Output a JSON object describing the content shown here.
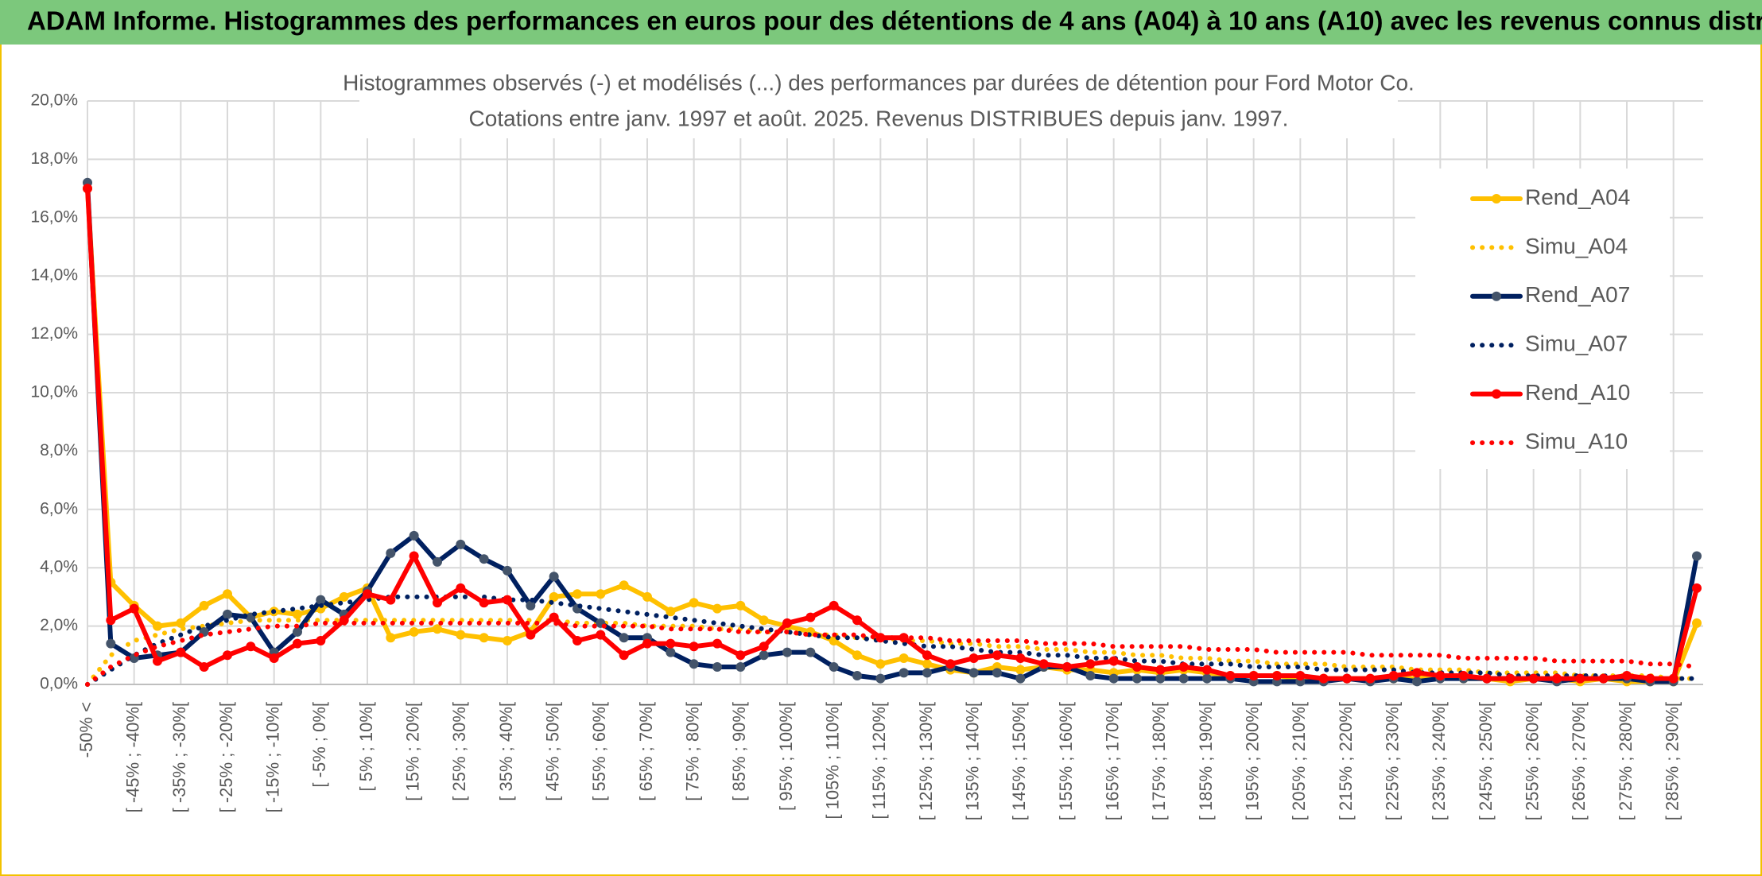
{
  "header": {
    "title": "ADAM Informe. Histogrammes des performances en euros pour des détentions de 4 ans (A04) à 10 ans (A10) avec les revenus connus distribués"
  },
  "chart_data": {
    "type": "line",
    "title": "Histogrammes observés (-) et modélisés (...) des performances par durées de détention pour Ford Motor Co.",
    "subtitle": "Cotations entre janv. 1997 et août. 2025. Revenus DISTRIBUES depuis janv. 1997.",
    "categories": [
      "-50% <",
      null,
      "[ -45% ; -40%[",
      null,
      "[ -35% ; -30%[",
      null,
      "[ -25% ; -20%[",
      null,
      "[ -15% ; -10%[",
      null,
      "[ -5% ; 0%[",
      null,
      "[ 5% ; 10%[",
      null,
      "[ 15% ; 20%[",
      null,
      "[ 25% ; 30%[",
      null,
      "[ 35% ; 40%[",
      null,
      "[ 45% ; 50%[",
      null,
      "[ 55% ; 60%[",
      null,
      "[ 65% ; 70%[",
      null,
      "[ 75% ; 80%[",
      null,
      "[ 85% ; 90%[",
      null,
      "[ 95% ; 100%[",
      null,
      "[ 105% ; 110%[",
      null,
      "[ 115% ; 120%[",
      null,
      "[ 125% ; 130%[",
      null,
      "[ 135% ; 140%[",
      null,
      "[ 145% ; 150%[",
      null,
      "[ 155% ; 160%[",
      null,
      "[ 165% ; 170%[",
      null,
      "[ 175% ; 180%[",
      null,
      "[ 185% ; 190%[",
      null,
      "[ 195% ; 200%[",
      null,
      "[ 205% ; 210%[",
      null,
      "[ 215% ; 220%[",
      null,
      "[ 225% ; 230%[",
      null,
      "[ 235% ; 240%[",
      null,
      "[ 245% ; 250%[",
      null,
      "[ 255% ; 260%[",
      null,
      "[ 265% ; 270%[",
      null,
      "[ 275% ; 280%[",
      null,
      "[ 285% ; 290%[",
      null
    ],
    "ylim": [
      0,
      20
    ],
    "yticks": [
      {
        "value": 0,
        "label": "0,0%"
      },
      {
        "value": 2,
        "label": "2,0%"
      },
      {
        "value": 4,
        "label": "4,0%"
      },
      {
        "value": 6,
        "label": "6,0%"
      },
      {
        "value": 8,
        "label": "8,0%"
      },
      {
        "value": 10,
        "label": "10,0%"
      },
      {
        "value": 12,
        "label": "12,0%"
      },
      {
        "value": 14,
        "label": "14,0%"
      },
      {
        "value": 16,
        "label": "16,0%"
      },
      {
        "value": 18,
        "label": "18,0%"
      },
      {
        "value": 20,
        "label": "20,0%"
      }
    ],
    "grid": true,
    "legend": "right",
    "series": [
      {
        "name": "Rend_A04",
        "color": "#ffc000",
        "style": "solid",
        "values": [
          17.0,
          3.5,
          2.7,
          2.0,
          2.1,
          2.7,
          3.1,
          2.3,
          2.5,
          2.4,
          2.6,
          3.0,
          3.3,
          1.6,
          1.8,
          1.9,
          1.7,
          1.6,
          1.5,
          1.8,
          3.0,
          3.1,
          3.1,
          3.4,
          3.0,
          2.5,
          2.8,
          2.6,
          2.7,
          2.2,
          2.0,
          1.8,
          1.5,
          1.0,
          0.7,
          0.9,
          0.7,
          0.5,
          0.4,
          0.6,
          0.5,
          0.6,
          0.5,
          0.5,
          0.4,
          0.5,
          0.4,
          0.5,
          0.4,
          0.3,
          0.3,
          0.3,
          0.2,
          0.2,
          0.2,
          0.2,
          0.2,
          0.2,
          0.3,
          0.2,
          0.2,
          0.1,
          0.2,
          0.2,
          0.1,
          0.2,
          0.1,
          0.1,
          0.1,
          2.1
        ]
      },
      {
        "name": "Simu_A04",
        "color": "#ffc000",
        "style": "dotted",
        "values": [
          0,
          1.0,
          1.5,
          1.7,
          1.9,
          2.0,
          2.1,
          2.2,
          2.2,
          2.2,
          2.2,
          2.2,
          2.2,
          2.2,
          2.2,
          2.2,
          2.2,
          2.2,
          2.2,
          2.2,
          2.2,
          2.1,
          2.1,
          2.1,
          2.0,
          2.0,
          2.0,
          1.9,
          1.9,
          1.8,
          1.8,
          1.7,
          1.7,
          1.6,
          1.6,
          1.5,
          1.5,
          1.4,
          1.4,
          1.3,
          1.3,
          1.2,
          1.2,
          1.1,
          1.1,
          1.0,
          1.0,
          0.9,
          0.9,
          0.8,
          0.8,
          0.7,
          0.7,
          0.7,
          0.6,
          0.6,
          0.6,
          0.5,
          0.5,
          0.5,
          0.4,
          0.4,
          0.4,
          0.4,
          0.3,
          0.3,
          0.3,
          0.3,
          0.2,
          0.2
        ]
      },
      {
        "name": "Rend_A07",
        "color": "#002060",
        "style": "solid",
        "values": [
          17.2,
          1.4,
          0.9,
          1.0,
          1.1,
          1.8,
          2.4,
          2.3,
          1.1,
          1.8,
          2.9,
          2.4,
          3.2,
          4.5,
          5.1,
          4.2,
          4.8,
          4.3,
          3.9,
          2.7,
          3.7,
          2.6,
          2.1,
          1.6,
          1.6,
          1.1,
          0.7,
          0.6,
          0.6,
          1.0,
          1.1,
          1.1,
          0.6,
          0.3,
          0.2,
          0.4,
          0.4,
          0.6,
          0.4,
          0.4,
          0.2,
          0.6,
          0.6,
          0.3,
          0.2,
          0.2,
          0.2,
          0.2,
          0.2,
          0.2,
          0.1,
          0.1,
          0.1,
          0.1,
          0.2,
          0.1,
          0.2,
          0.1,
          0.2,
          0.2,
          0.2,
          0.2,
          0.2,
          0.1,
          0.2,
          0.2,
          0.2,
          0.1,
          0.1,
          4.4
        ]
      },
      {
        "name": "Simu_A07",
        "color": "#002060",
        "style": "dotted",
        "values": [
          0,
          0.5,
          1.0,
          1.4,
          1.7,
          2.0,
          2.2,
          2.4,
          2.5,
          2.6,
          2.7,
          2.8,
          2.9,
          3.0,
          3.0,
          3.0,
          3.0,
          3.0,
          2.9,
          2.9,
          2.8,
          2.7,
          2.6,
          2.5,
          2.4,
          2.3,
          2.2,
          2.1,
          2.0,
          1.9,
          1.8,
          1.7,
          1.6,
          1.6,
          1.5,
          1.4,
          1.3,
          1.3,
          1.2,
          1.1,
          1.1,
          1.0,
          1.0,
          0.9,
          0.9,
          0.8,
          0.8,
          0.7,
          0.7,
          0.7,
          0.6,
          0.6,
          0.6,
          0.5,
          0.5,
          0.5,
          0.5,
          0.4,
          0.4,
          0.4,
          0.4,
          0.3,
          0.3,
          0.3,
          0.3,
          0.3,
          0.2,
          0.2,
          0.2,
          0.2
        ]
      },
      {
        "name": "Rend_A10",
        "color": "#ff0000",
        "style": "solid",
        "values": [
          17.0,
          2.2,
          2.6,
          0.8,
          1.1,
          0.6,
          1.0,
          1.3,
          0.9,
          1.4,
          1.5,
          2.2,
          3.1,
          2.9,
          4.4,
          2.8,
          3.3,
          2.8,
          2.9,
          1.7,
          2.3,
          1.5,
          1.7,
          1.0,
          1.4,
          1.4,
          1.3,
          1.4,
          1.0,
          1.3,
          2.1,
          2.3,
          2.7,
          2.2,
          1.6,
          1.6,
          1.0,
          0.7,
          0.9,
          1.0,
          0.9,
          0.7,
          0.6,
          0.7,
          0.8,
          0.6,
          0.5,
          0.6,
          0.5,
          0.3,
          0.3,
          0.3,
          0.3,
          0.2,
          0.2,
          0.2,
          0.3,
          0.4,
          0.3,
          0.3,
          0.2,
          0.2,
          0.2,
          0.2,
          0.2,
          0.2,
          0.3,
          0.2,
          0.2,
          3.3
        ]
      },
      {
        "name": "Simu_A10",
        "color": "#ff0000",
        "style": "dotted",
        "values": [
          0,
          0.6,
          1.0,
          1.3,
          1.5,
          1.7,
          1.8,
          1.9,
          2.0,
          2.0,
          2.1,
          2.1,
          2.1,
          2.1,
          2.1,
          2.1,
          2.1,
          2.1,
          2.1,
          2.1,
          2.1,
          2.0,
          2.0,
          2.0,
          2.0,
          1.9,
          1.9,
          1.9,
          1.8,
          1.8,
          1.8,
          1.7,
          1.7,
          1.7,
          1.6,
          1.6,
          1.6,
          1.5,
          1.5,
          1.5,
          1.5,
          1.4,
          1.4,
          1.4,
          1.3,
          1.3,
          1.3,
          1.3,
          1.2,
          1.2,
          1.2,
          1.1,
          1.1,
          1.1,
          1.1,
          1.0,
          1.0,
          1.0,
          1.0,
          0.9,
          0.9,
          0.9,
          0.9,
          0.8,
          0.8,
          0.8,
          0.8,
          0.7,
          0.7,
          0.6
        ]
      }
    ]
  }
}
